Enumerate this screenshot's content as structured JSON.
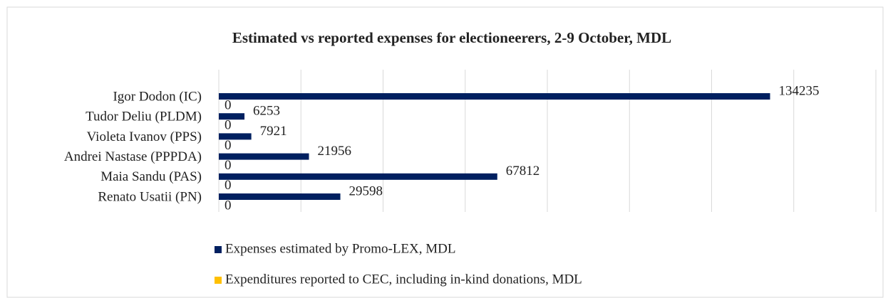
{
  "chart_data": {
    "type": "bar",
    "orientation": "horizontal",
    "title": "Estimated vs reported expenses for electioneerers, 2-9 October, MDL",
    "categories": [
      "Igor Dodon (IC)",
      "Tudor Deliu (PLDM)",
      "Violeta Ivanov (PPS)",
      "Andrei Nastase (PPPDA)",
      "Maia Sandu (PAS)",
      "Renato Usatii (PN)"
    ],
    "series": [
      {
        "name": "Expenses estimated by Promo-LEX, MDL",
        "color": "#002060",
        "values": [
          134235,
          6253,
          7921,
          21956,
          67812,
          29598
        ]
      },
      {
        "name": "Expenditures reported to CEC, including in-kind donations, MDL",
        "color": "#ffc000",
        "values": [
          0,
          0,
          0,
          0,
          0,
          0
        ]
      }
    ],
    "xlim": [
      0,
      160000
    ],
    "xticks": [
      0,
      20000,
      40000,
      60000,
      80000,
      100000,
      120000,
      140000,
      160000
    ],
    "grid": true,
    "legend": "bottom"
  }
}
